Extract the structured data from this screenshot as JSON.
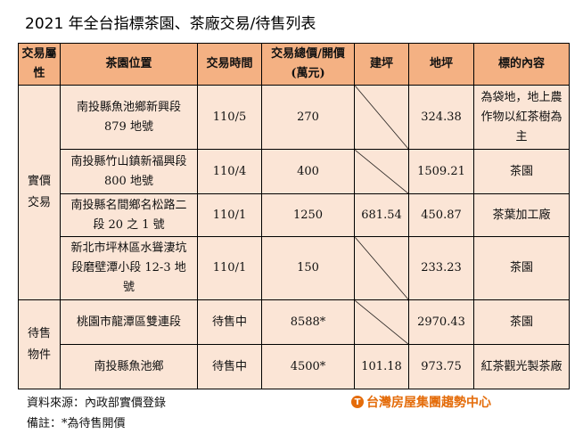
{
  "title": "2021 年全台指標茶園、茶廠交易/待售列表",
  "headers": [
    "交易屬性",
    "茶園位置",
    "交易時間",
    "交易總價/開價(萬元)",
    "建坪",
    "地坪",
    "標的內容"
  ],
  "groups": [
    {
      "label": "實價交易",
      "rows": [
        {
          "location": "南投縣魚池鄉新興段 879 地號",
          "time": "110/5",
          "price": "270",
          "building": "",
          "land": "324.38",
          "content": "為袋地，地上農作物以紅茶樹為主"
        },
        {
          "location": "南投縣竹山鎮新福興段 800 地號",
          "time": "110/4",
          "price": "400",
          "building": "",
          "land": "1509.21",
          "content": "茶園"
        },
        {
          "location": "南投縣名間鄉名松路二段 20 之 1 號",
          "time": "110/1",
          "price": "1250",
          "building": "681.54",
          "land": "450.87",
          "content": "茶葉加工廠"
        },
        {
          "location": "新北市坪林區水聳淒坑段磨壁潭小段 12-3 地號",
          "time": "110/1",
          "price": "150",
          "building": "",
          "land": "233.23",
          "content": "茶園"
        }
      ]
    },
    {
      "label": "待售物件",
      "rows": [
        {
          "location": "桃園市龍潭區雙連段",
          "time": "待售中",
          "price": "8588*",
          "building": "",
          "land": "2970.43",
          "content": "茶園"
        },
        {
          "location": "南投縣魚池鄉",
          "time": "待售中",
          "price": "4500*",
          "building": "101.18",
          "land": "973.75",
          "content": "紅茶觀光製茶廠"
        }
      ]
    }
  ],
  "footer": {
    "source": "資料來源：內政部實價登錄",
    "note": "備註：*為待售開價",
    "logo": "台灣房屋集團趨勢中心"
  },
  "colors": {
    "header": "#f4b183",
    "body": "#fbe5d6",
    "logo": "#e46c0a"
  }
}
